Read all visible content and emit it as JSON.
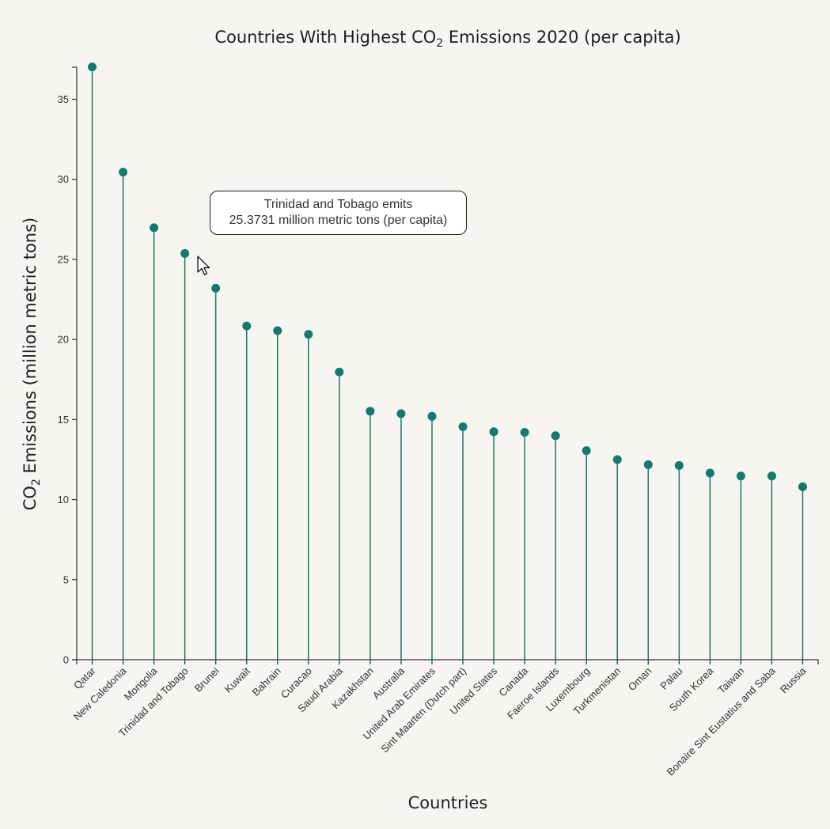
{
  "chart_data": {
    "type": "lollipop",
    "title": {
      "prefix": "Countries With Highest CO",
      "sub": "2",
      "suffix": " Emissions 2020 (per capita)"
    },
    "xlabel": "Countries",
    "ylabel": {
      "prefix": "CO",
      "sub": "2",
      "suffix": " Emissions (million metric tons)"
    },
    "ylim": [
      0,
      37
    ],
    "yticks": [
      0,
      5,
      10,
      15,
      20,
      25,
      30,
      35
    ],
    "color": "#157a6e",
    "categories": [
      "Qatar",
      "New Caledonia",
      "Mongolia",
      "Trinidad and Tobago",
      "Brunei",
      "Kuwait",
      "Bahrain",
      "Curacao",
      "Saudi Arabia",
      "Kazakhstan",
      "Australia",
      "United Arab Emirates",
      "Sint Maarten (Dutch part)",
      "United States",
      "Canada",
      "Faeroe Islands",
      "Luxembourg",
      "Turkmenistan",
      "Oman",
      "Palau",
      "South Korea",
      "Taiwan",
      "Bonaire Sint Eustatius and Saba",
      "Russia"
    ],
    "values": [
      37.02,
      30.45,
      26.98,
      25.3731,
      23.2,
      20.84,
      20.55,
      20.32,
      17.97,
      15.52,
      15.37,
      15.2,
      14.55,
      14.24,
      14.2,
      13.99,
      13.06,
      12.5,
      12.18,
      12.13,
      11.66,
      11.47,
      11.47,
      10.8
    ]
  },
  "tooltip": {
    "line1": "Trinidad and Tobago emits",
    "line2": "25.3731 million metric tons (per capita)"
  }
}
